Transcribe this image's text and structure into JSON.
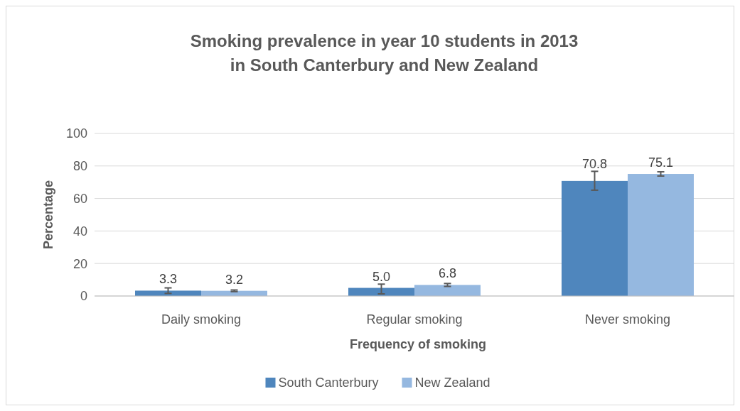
{
  "chart_data": {
    "type": "bar",
    "title": "Smoking prevalence in year 10 students in 2013\nin South Canterbury and New Zealand",
    "xlabel": "Frequency of smoking",
    "ylabel": "Percentage",
    "categories": [
      "Daily smoking",
      "Regular smoking",
      "Never smoking"
    ],
    "series": [
      {
        "name": "South Canterbury",
        "color": "#4f86bd",
        "values": [
          3.3,
          5.0,
          70.8
        ],
        "value_labels": [
          "3.3",
          "5.0",
          "70.8"
        ],
        "errors": [
          [
            1.6,
            5.0
          ],
          [
            1.3,
            7.3
          ],
          [
            65.1,
            76.7
          ]
        ]
      },
      {
        "name": "New Zealand",
        "color": "#95b8e0",
        "values": [
          3.2,
          6.8,
          75.1
        ],
        "value_labels": [
          "3.2",
          "6.8",
          "75.1"
        ],
        "errors": [
          [
            2.7,
            3.7
          ],
          [
            5.9,
            7.7
          ],
          [
            73.8,
            76.4
          ]
        ]
      }
    ],
    "ylim": [
      0,
      100
    ],
    "yticks": [
      0,
      20,
      40,
      60,
      80,
      100
    ],
    "grid": "y",
    "legend": "bottom"
  }
}
